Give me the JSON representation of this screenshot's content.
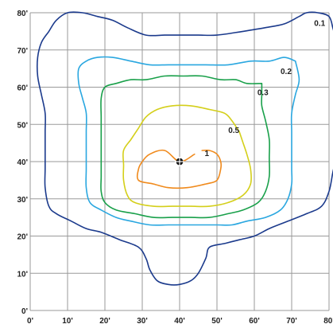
{
  "chart_data": {
    "type": "contour",
    "grid": true,
    "xlim": [
      0,
      80
    ],
    "ylim": [
      0,
      80
    ],
    "x_ticks": [
      "0'",
      "10'",
      "20'",
      "30'",
      "40'",
      "50'",
      "60'",
      "70'",
      "80'"
    ],
    "y_ticks": [
      "0'",
      "10'",
      "20'",
      "30'",
      "40'",
      "50'",
      "60'",
      "70'",
      "80'"
    ],
    "source_point": {
      "x": 40,
      "y": 40,
      "marker": "crosshair"
    },
    "series": [
      {
        "name": "0.1",
        "color": "#1b3a8c",
        "points": [
          [
            81,
            76
          ],
          [
            80,
            79
          ],
          [
            77,
            80
          ],
          [
            74,
            80
          ],
          [
            72,
            79
          ],
          [
            68,
            77
          ],
          [
            63,
            76
          ],
          [
            57,
            75
          ],
          [
            50,
            74
          ],
          [
            45,
            74
          ],
          [
            40,
            74
          ],
          [
            36,
            74
          ],
          [
            31,
            74
          ],
          [
            26,
            76
          ],
          [
            22,
            78
          ],
          [
            18,
            79
          ],
          [
            14,
            80
          ],
          [
            10,
            80
          ],
          [
            7,
            78
          ],
          [
            5,
            75
          ],
          [
            3,
            72
          ],
          [
            2,
            68
          ],
          [
            2,
            63
          ],
          [
            3,
            58
          ],
          [
            4,
            53
          ],
          [
            4,
            48
          ],
          [
            4,
            43
          ],
          [
            4,
            38
          ],
          [
            4,
            33
          ],
          [
            5,
            28
          ],
          [
            7,
            26
          ],
          [
            11,
            24
          ],
          [
            15,
            22
          ],
          [
            19,
            21
          ],
          [
            24,
            19
          ],
          [
            29,
            17
          ],
          [
            31,
            14
          ],
          [
            32,
            11
          ],
          [
            34,
            8
          ],
          [
            37,
            7
          ],
          [
            40,
            7
          ],
          [
            43,
            8
          ],
          [
            45,
            10
          ],
          [
            47,
            14
          ],
          [
            48,
            17
          ],
          [
            52,
            18
          ],
          [
            56,
            19
          ],
          [
            60,
            20
          ],
          [
            64,
            22
          ],
          [
            69,
            24
          ],
          [
            74,
            26
          ],
          [
            78,
            28
          ],
          [
            80,
            32
          ],
          [
            81,
            37
          ],
          [
            82,
            42
          ],
          [
            82,
            47
          ],
          [
            82,
            52
          ],
          [
            82,
            58
          ],
          [
            82,
            63
          ],
          [
            82,
            68
          ],
          [
            82,
            72
          ],
          [
            81,
            76
          ]
        ],
        "label_position": {
          "x": 77.5,
          "y": 77.2
        }
      },
      {
        "name": "0.2",
        "color": "#2aa7e0",
        "points": [
          [
            71,
            67
          ],
          [
            68,
            68
          ],
          [
            64,
            67
          ],
          [
            59,
            67
          ],
          [
            53,
            66
          ],
          [
            47,
            66
          ],
          [
            42,
            66
          ],
          [
            37,
            66
          ],
          [
            32,
            66
          ],
          [
            27,
            67
          ],
          [
            22,
            68
          ],
          [
            18,
            68
          ],
          [
            15,
            67
          ],
          [
            13,
            65
          ],
          [
            13,
            61
          ],
          [
            14,
            57
          ],
          [
            15,
            53
          ],
          [
            15,
            48
          ],
          [
            15,
            43
          ],
          [
            15,
            38
          ],
          [
            15,
            33
          ],
          [
            16,
            29
          ],
          [
            19,
            27
          ],
          [
            23,
            25
          ],
          [
            27,
            24
          ],
          [
            32,
            23
          ],
          [
            37,
            23
          ],
          [
            41,
            23
          ],
          [
            45,
            23
          ],
          [
            50,
            23
          ],
          [
            54,
            23
          ],
          [
            58,
            24
          ],
          [
            63,
            25
          ],
          [
            67,
            27
          ],
          [
            69,
            30
          ],
          [
            70,
            34
          ],
          [
            70,
            38
          ],
          [
            70,
            43
          ],
          [
            70,
            48
          ],
          [
            70,
            53
          ],
          [
            71,
            58
          ],
          [
            72,
            62
          ],
          [
            71,
            67
          ]
        ],
        "label_position": {
          "x": 68.5,
          "y": 64.3
        }
      },
      {
        "name": "0.3",
        "color": "#19a04a",
        "points": [
          [
            62,
            61
          ],
          [
            58,
            61
          ],
          [
            55,
            62
          ],
          [
            51,
            62
          ],
          [
            46,
            63
          ],
          [
            41,
            63
          ],
          [
            36,
            63
          ],
          [
            31,
            62
          ],
          [
            27,
            62
          ],
          [
            23,
            61
          ],
          [
            20,
            60
          ],
          [
            19,
            57
          ],
          [
            19,
            52
          ],
          [
            19,
            48
          ],
          [
            19,
            44
          ],
          [
            19,
            40
          ],
          [
            19,
            36
          ],
          [
            19,
            32
          ],
          [
            20,
            29
          ],
          [
            23,
            27
          ],
          [
            28,
            26
          ],
          [
            33,
            25
          ],
          [
            38,
            25
          ],
          [
            43,
            25
          ],
          [
            48,
            25
          ],
          [
            53,
            26
          ],
          [
            57,
            27
          ],
          [
            61,
            29
          ],
          [
            63,
            32
          ],
          [
            64,
            36
          ],
          [
            64,
            41
          ],
          [
            64,
            46
          ],
          [
            63,
            51
          ],
          [
            62,
            55
          ],
          [
            62,
            58
          ],
          [
            62,
            61
          ]
        ],
        "label_position": {
          "x": 62.3,
          "y": 58.6
        }
      },
      {
        "name": "0.5",
        "color": "#d4cf1a",
        "points": [
          [
            56,
            48
          ],
          [
            54,
            51
          ],
          [
            52,
            53
          ],
          [
            48,
            54
          ],
          [
            43,
            55
          ],
          [
            38,
            55
          ],
          [
            34,
            54
          ],
          [
            31,
            52
          ],
          [
            29,
            49
          ],
          [
            27,
            46
          ],
          [
            25,
            43
          ],
          [
            25,
            39
          ],
          [
            25,
            35
          ],
          [
            26,
            31
          ],
          [
            28,
            29
          ],
          [
            33,
            28
          ],
          [
            38,
            28
          ],
          [
            43,
            28
          ],
          [
            48,
            28
          ],
          [
            53,
            29
          ],
          [
            57,
            31
          ],
          [
            59,
            34
          ],
          [
            59,
            38
          ],
          [
            58,
            42
          ],
          [
            57,
            45
          ],
          [
            56,
            48
          ]
        ],
        "label_position": {
          "x": 54.5,
          "y": 48.5
        }
      },
      {
        "name": "1",
        "color": "#f08a1c",
        "points": [
          [
            44,
            42
          ],
          [
            40,
            40
          ],
          [
            36,
            43
          ],
          [
            32,
            42
          ],
          [
            30,
            40
          ],
          [
            29,
            38
          ],
          [
            29,
            35
          ],
          [
            33,
            34
          ],
          [
            37,
            33
          ],
          [
            42,
            33
          ],
          [
            47,
            34
          ],
          [
            50,
            35
          ],
          [
            51,
            38
          ],
          [
            51,
            40
          ],
          [
            50,
            42
          ],
          [
            48,
            43
          ],
          [
            46,
            43
          ]
        ],
        "label_position": {
          "x": 47.3,
          "y": 42.2
        }
      }
    ]
  }
}
